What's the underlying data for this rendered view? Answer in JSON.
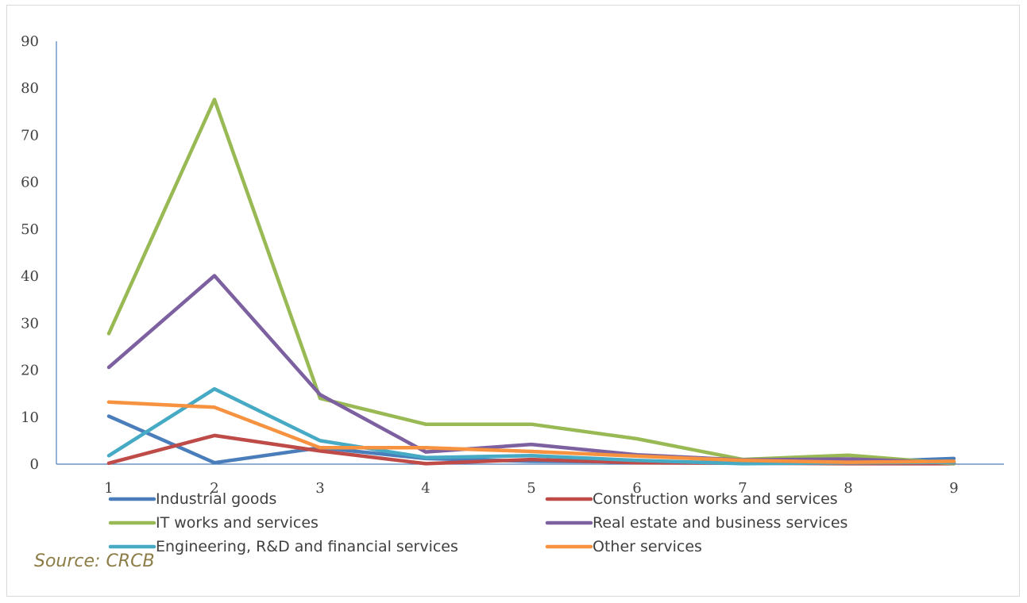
{
  "chart_data": {
    "type": "line",
    "title": "",
    "xlabel": "",
    "ylabel": "",
    "x": [
      1,
      2,
      3,
      4,
      5,
      6,
      7,
      8,
      9
    ],
    "ylim": [
      0,
      90
    ],
    "yticks": [
      "0",
      "10",
      "20",
      "30",
      "40",
      "50",
      "60",
      "70",
      "80",
      "90"
    ],
    "xticks": [
      "1",
      "2",
      "3",
      "4",
      "5",
      "6",
      "7",
      "8",
      "9"
    ],
    "grid": false,
    "legend_position": "bottom",
    "series": [
      {
        "name": "Industrial goods",
        "color": "#4a7ebb",
        "values": [
          10.2,
          0.3,
          3.5,
          1.2,
          0.6,
          0.5,
          0.3,
          0.4,
          1.2
        ]
      },
      {
        "name": "Construction works and services",
        "color": "#be4b48",
        "values": [
          0.2,
          6.1,
          2.8,
          0.1,
          1.0,
          0.3,
          0.2,
          0.1,
          0.1
        ]
      },
      {
        "name": "IT works and services",
        "color": "#98b954",
        "values": [
          27.8,
          77.6,
          14.0,
          8.5,
          8.5,
          5.4,
          1.0,
          1.9,
          0.1
        ]
      },
      {
        "name": "Real estate and business services",
        "color": "#7d60a0",
        "values": [
          20.6,
          40.1,
          14.8,
          2.6,
          4.2,
          2.0,
          0.9,
          1.1,
          0.3
        ]
      },
      {
        "name": "Engineering, R&D and financial services",
        "color": "#46aac5",
        "values": [
          1.8,
          16.0,
          5.0,
          1.4,
          1.8,
          0.8,
          0.1,
          0.3,
          0.4
        ]
      },
      {
        "name": "Other services",
        "color": "#f69240",
        "values": [
          13.2,
          12.1,
          3.5,
          3.5,
          2.7,
          1.7,
          0.8,
          0.4,
          0.6
        ]
      }
    ]
  },
  "source": "Source: CRCB"
}
